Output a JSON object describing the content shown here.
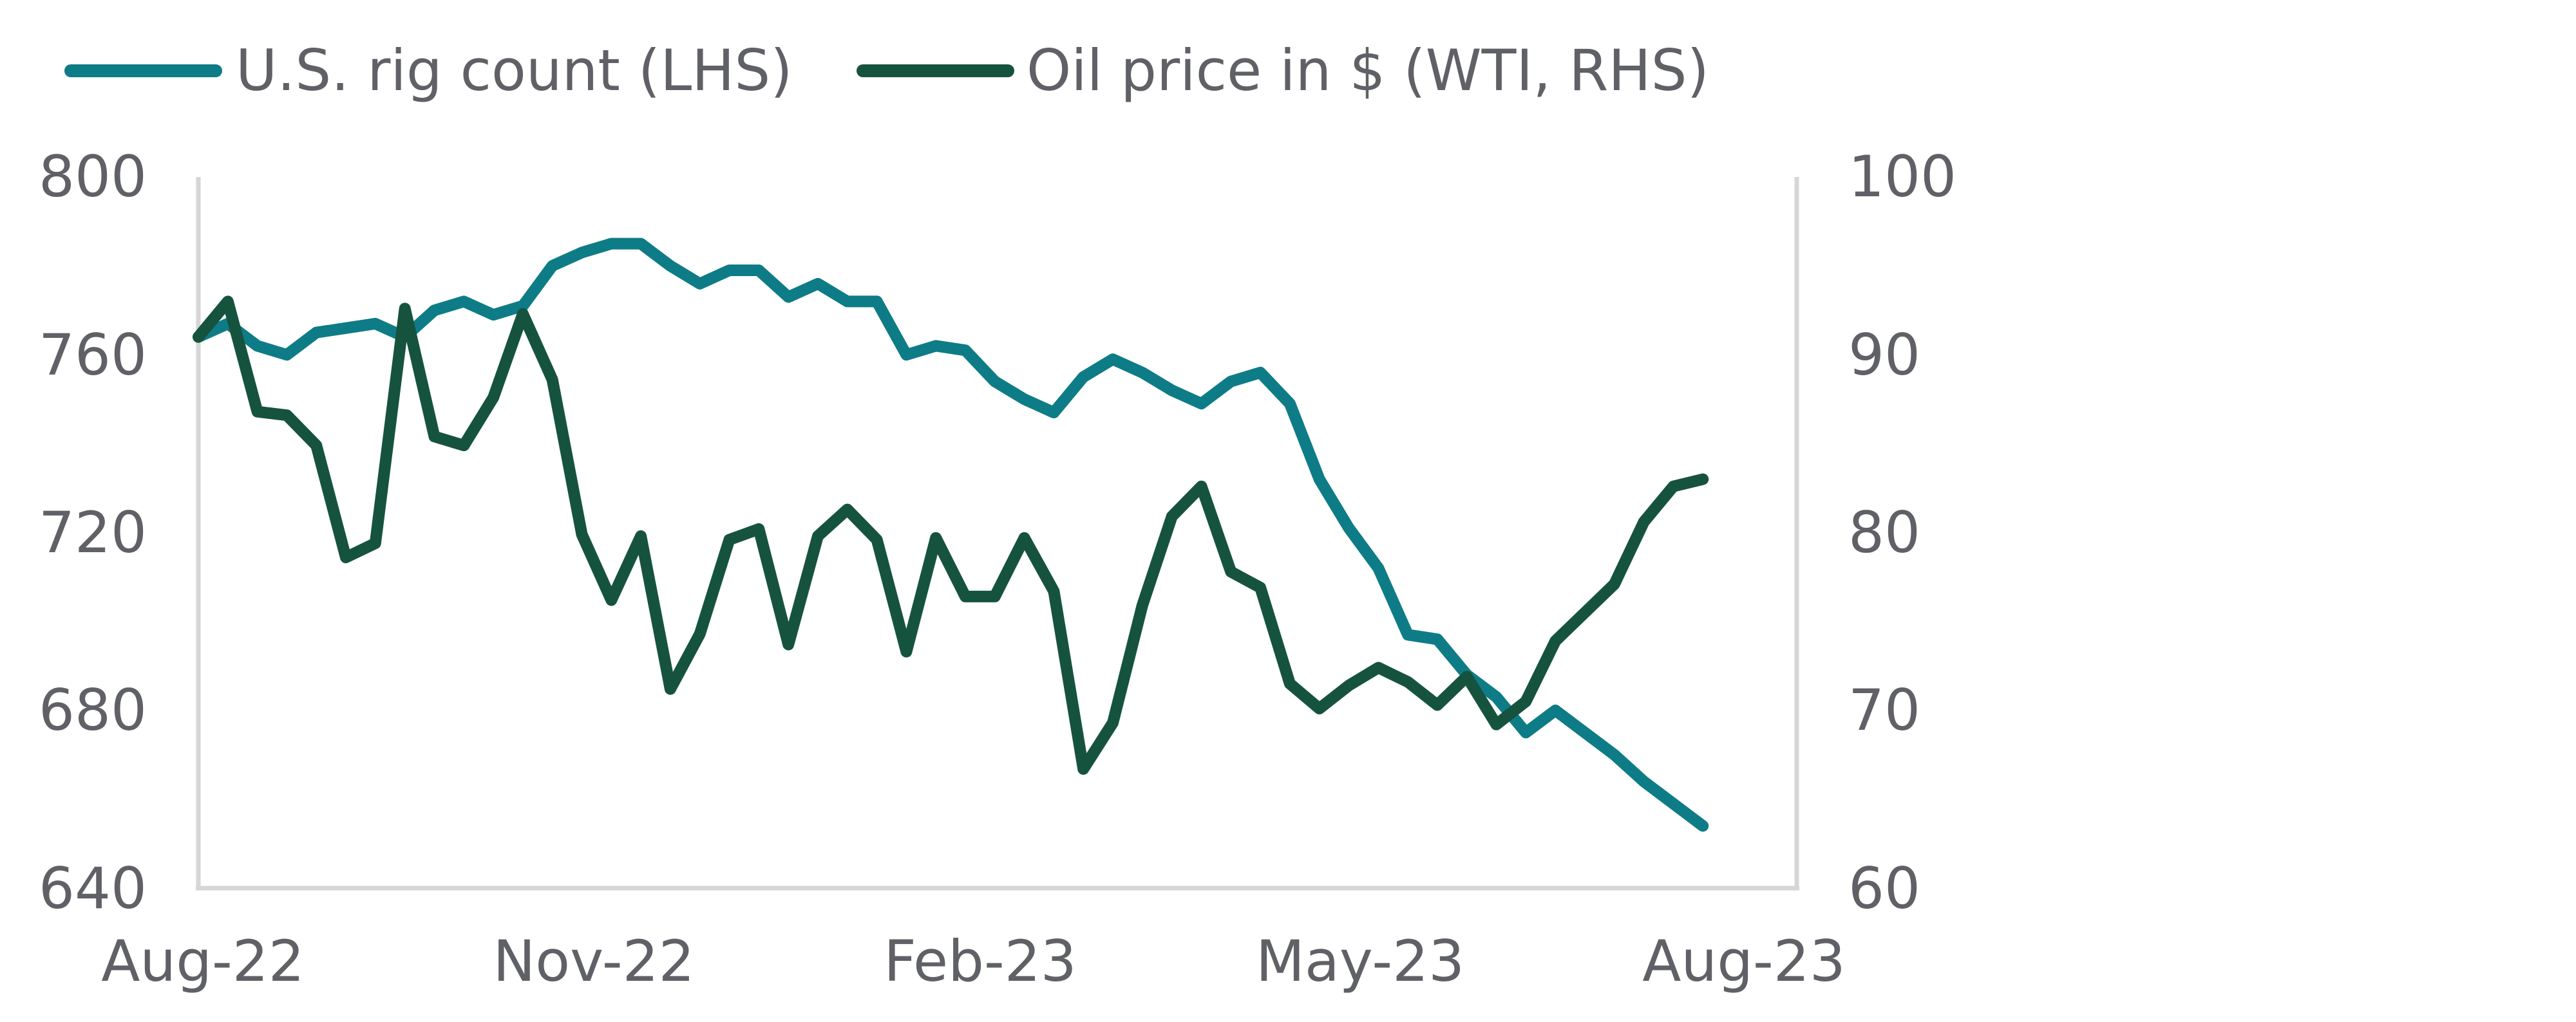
{
  "chart_data": {
    "type": "line",
    "title": "",
    "legend": {
      "placement": "top-left",
      "items": [
        {
          "label": "U.S. rig count (LHS)",
          "color": "#0e7c86"
        },
        {
          "label": "Oil price in $ (WTI, RHS)",
          "color": "#16533f"
        }
      ]
    },
    "x_tick_labels": [
      "Aug-22",
      "Nov-22",
      "Feb-23",
      "May-23",
      "Aug-23"
    ],
    "y_left": {
      "ticks": [
        "800",
        "760",
        "720",
        "680",
        "640"
      ],
      "ylim": [
        640,
        800
      ]
    },
    "y_right": {
      "ticks": [
        "100",
        "90",
        "80",
        "70",
        "60"
      ],
      "ylim": [
        60,
        100
      ]
    },
    "grid": false,
    "x_range_weeks": [
      0,
      52
    ],
    "series": [
      {
        "name": "U.S. rig count (LHS)",
        "axis": "left",
        "color": "#0e7c86",
        "x_week": [
          0,
          1,
          2,
          3,
          4,
          5,
          6,
          7,
          8,
          9,
          10,
          11,
          12,
          13,
          14,
          15,
          16,
          17,
          18,
          19,
          20,
          21,
          22,
          23,
          24,
          25,
          26,
          27,
          28,
          29,
          30,
          31,
          32,
          33,
          34,
          35,
          36,
          37,
          38,
          39,
          40,
          41,
          42,
          43,
          44,
          45,
          46,
          47,
          48,
          49,
          50,
          51
        ],
        "values": [
          764,
          767,
          762,
          760,
          765,
          766,
          767,
          764,
          770,
          772,
          769,
          771,
          780,
          783,
          785,
          785,
          780,
          776,
          779,
          779,
          773,
          776,
          772,
          772,
          760,
          762,
          761,
          754,
          750,
          747,
          755,
          759,
          756,
          752,
          749,
          754,
          756,
          749,
          732,
          721,
          712,
          697,
          696,
          688,
          683,
          675,
          680,
          675,
          670,
          664,
          659,
          654
        ]
      },
      {
        "name": "Oil price in $ (WTI, RHS)",
        "axis": "right",
        "color": "#16533f",
        "x_week": [
          0,
          1,
          2,
          3,
          4,
          5,
          6,
          7,
          8,
          9,
          10,
          11,
          12,
          13,
          14,
          15,
          16,
          17,
          18,
          19,
          20,
          21,
          22,
          23,
          24,
          25,
          26,
          27,
          28,
          29,
          30,
          31,
          32,
          33,
          34,
          35,
          36,
          37,
          38,
          39,
          40,
          41,
          42,
          43,
          44,
          45,
          46,
          47,
          48,
          49,
          50,
          51
        ],
        "values": [
          91,
          93,
          86.8,
          86.6,
          84.9,
          78.6,
          79.4,
          92.6,
          85.4,
          84.9,
          87.6,
          92.3,
          88.6,
          79.9,
          76.2,
          79.8,
          71.2,
          74.3,
          79.6,
          80.2,
          73.7,
          79.8,
          81.3,
          79.6,
          73.3,
          79.7,
          76.4,
          76.4,
          79.7,
          76.7,
          66.7,
          69.3,
          75.9,
          80.9,
          82.6,
          77.8,
          76.9,
          71.5,
          70.1,
          71.4,
          72.4,
          71.6,
          70.3,
          71.9,
          69.2,
          70.5,
          73.9,
          75.5,
          77.1,
          80.6,
          82.6,
          83
        ]
      }
    ]
  }
}
